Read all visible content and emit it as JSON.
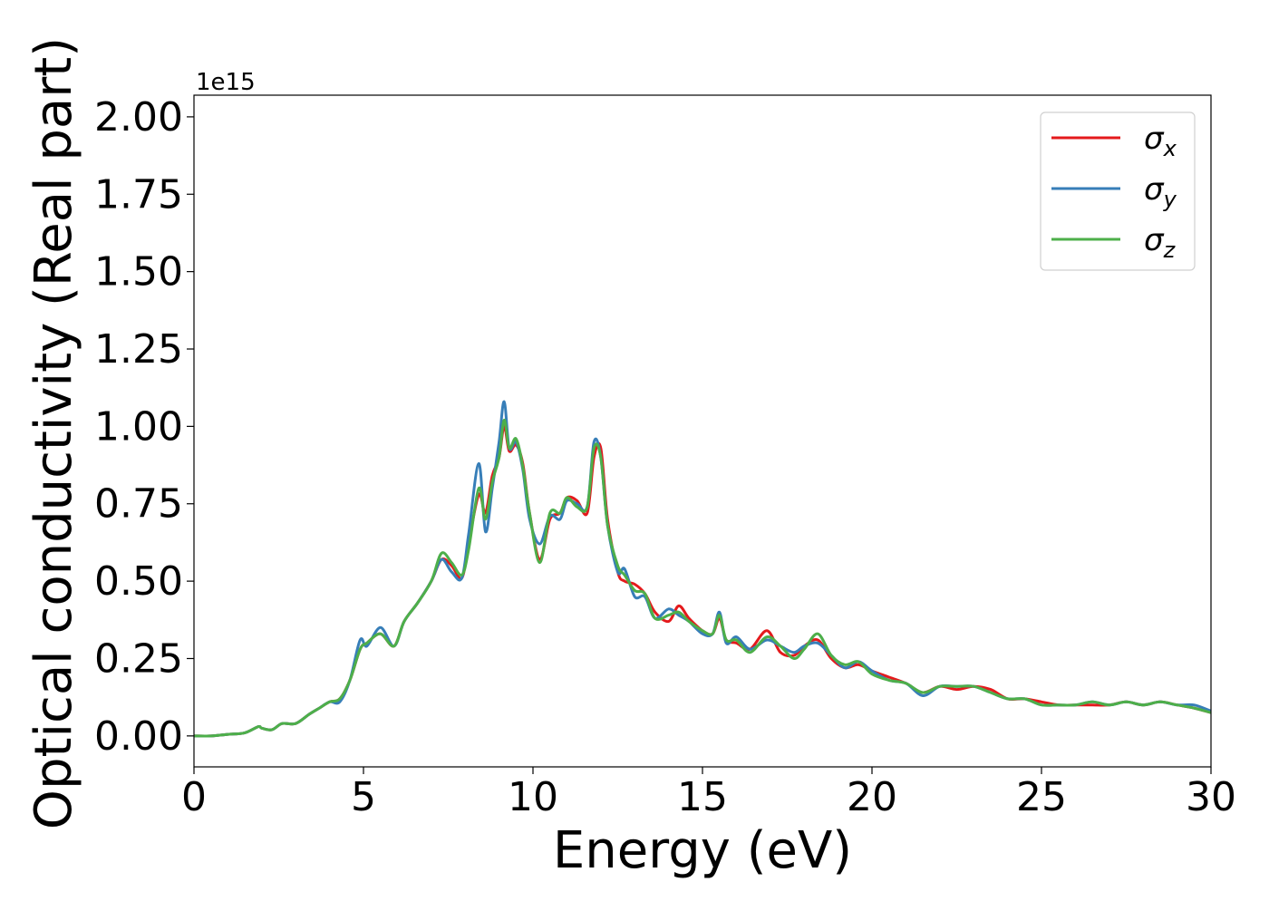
{
  "chart_data": {
    "type": "line",
    "title": "",
    "xlabel": "Energy (eV)",
    "ylabel": "Optical conductivity (Real part)",
    "offset_label": "1e15",
    "xlim": [
      0,
      30
    ],
    "ylim": [
      -0.1,
      2.07
    ],
    "x_ticks": [
      0,
      5,
      10,
      15,
      20,
      25,
      30
    ],
    "x_tick_labels": [
      "0",
      "5",
      "10",
      "15",
      "20",
      "25",
      "30"
    ],
    "y_ticks": [
      0.0,
      0.25,
      0.5,
      0.75,
      1.0,
      1.25,
      1.5,
      1.75,
      2.0
    ],
    "y_tick_labels": [
      "0.00",
      "0.25",
      "0.50",
      "0.75",
      "1.00",
      "1.25",
      "1.50",
      "1.75",
      "2.00"
    ],
    "grid": false,
    "legend_position": "top-right",
    "series": [
      {
        "name": "σx",
        "legend_main": "σ",
        "legend_sub": "x",
        "color": "#e41a1c",
        "x": [
          0,
          0.5,
          1.0,
          1.5,
          1.9,
          2.0,
          2.3,
          2.6,
          3.0,
          3.4,
          3.7,
          4.0,
          4.3,
          4.6,
          4.9,
          5.1,
          5.5,
          5.9,
          6.2,
          6.6,
          7.0,
          7.3,
          7.6,
          7.9,
          8.1,
          8.4,
          8.6,
          8.8,
          9.0,
          9.15,
          9.3,
          9.5,
          9.7,
          9.9,
          10.2,
          10.5,
          10.8,
          11.0,
          11.3,
          11.6,
          11.8,
          12.0,
          12.2,
          12.5,
          12.7,
          13.0,
          13.3,
          13.6,
          14.0,
          14.3,
          14.6,
          15.0,
          15.3,
          15.5,
          15.7,
          16.0,
          16.4,
          16.9,
          17.3,
          17.7,
          18.0,
          18.4,
          18.8,
          19.2,
          19.6,
          20.0,
          20.5,
          21.0,
          21.5,
          22.0,
          22.5,
          23.0,
          23.5,
          24.0,
          24.5,
          25.0,
          25.5,
          26.0,
          26.5,
          27.0,
          27.5,
          28.0,
          28.5,
          29.0,
          29.5,
          30.0
        ],
        "values": [
          0.0,
          0.0,
          0.005,
          0.01,
          0.03,
          0.025,
          0.02,
          0.04,
          0.04,
          0.07,
          0.09,
          0.11,
          0.12,
          0.18,
          0.28,
          0.3,
          0.33,
          0.29,
          0.37,
          0.43,
          0.5,
          0.57,
          0.55,
          0.51,
          0.62,
          0.78,
          0.72,
          0.84,
          0.9,
          1.0,
          0.92,
          0.94,
          0.88,
          0.72,
          0.57,
          0.7,
          0.72,
          0.77,
          0.76,
          0.72,
          0.9,
          0.93,
          0.7,
          0.53,
          0.5,
          0.49,
          0.46,
          0.4,
          0.37,
          0.42,
          0.38,
          0.34,
          0.33,
          0.38,
          0.31,
          0.3,
          0.28,
          0.34,
          0.27,
          0.26,
          0.29,
          0.31,
          0.25,
          0.22,
          0.23,
          0.21,
          0.19,
          0.17,
          0.14,
          0.16,
          0.15,
          0.16,
          0.15,
          0.12,
          0.12,
          0.11,
          0.1,
          0.1,
          0.1,
          0.1,
          0.11,
          0.1,
          0.11,
          0.1,
          0.09,
          0.075
        ]
      },
      {
        "name": "σy",
        "legend_main": "σ",
        "legend_sub": "y",
        "color": "#377eb8",
        "x": [
          0,
          0.5,
          1.0,
          1.5,
          1.9,
          2.0,
          2.3,
          2.6,
          3.0,
          3.4,
          3.7,
          4.0,
          4.3,
          4.6,
          4.9,
          5.1,
          5.5,
          5.9,
          6.2,
          6.6,
          7.0,
          7.3,
          7.6,
          7.9,
          8.1,
          8.4,
          8.6,
          8.8,
          9.0,
          9.15,
          9.3,
          9.5,
          9.7,
          9.9,
          10.2,
          10.5,
          10.8,
          11.0,
          11.3,
          11.6,
          11.8,
          12.0,
          12.2,
          12.5,
          12.7,
          13.0,
          13.3,
          13.6,
          14.0,
          14.3,
          14.6,
          15.0,
          15.3,
          15.5,
          15.7,
          16.0,
          16.4,
          16.9,
          17.3,
          17.7,
          18.0,
          18.4,
          18.8,
          19.2,
          19.6,
          20.0,
          20.5,
          21.0,
          21.5,
          22.0,
          22.5,
          23.0,
          23.5,
          24.0,
          24.5,
          25.0,
          25.5,
          26.0,
          26.5,
          27.0,
          27.5,
          28.0,
          28.5,
          29.0,
          29.5,
          30.0
        ],
        "values": [
          0.0,
          0.0,
          0.005,
          0.01,
          0.03,
          0.025,
          0.02,
          0.04,
          0.04,
          0.07,
          0.09,
          0.11,
          0.11,
          0.18,
          0.31,
          0.29,
          0.35,
          0.29,
          0.37,
          0.43,
          0.5,
          0.57,
          0.53,
          0.51,
          0.65,
          0.88,
          0.66,
          0.8,
          0.95,
          1.08,
          0.93,
          0.95,
          0.86,
          0.7,
          0.62,
          0.71,
          0.7,
          0.76,
          0.75,
          0.74,
          0.95,
          0.9,
          0.68,
          0.53,
          0.54,
          0.45,
          0.45,
          0.38,
          0.41,
          0.39,
          0.37,
          0.33,
          0.33,
          0.4,
          0.3,
          0.32,
          0.28,
          0.31,
          0.29,
          0.27,
          0.29,
          0.3,
          0.26,
          0.22,
          0.24,
          0.21,
          0.18,
          0.17,
          0.13,
          0.16,
          0.16,
          0.16,
          0.14,
          0.12,
          0.12,
          0.1,
          0.1,
          0.1,
          0.11,
          0.1,
          0.11,
          0.1,
          0.11,
          0.1,
          0.1,
          0.08
        ]
      },
      {
        "name": "σz",
        "legend_main": "σ",
        "legend_sub": "z",
        "color": "#4daf4a",
        "x": [
          0,
          0.5,
          1.0,
          1.5,
          1.9,
          2.0,
          2.3,
          2.6,
          3.0,
          3.4,
          3.7,
          4.0,
          4.3,
          4.6,
          4.9,
          5.1,
          5.5,
          5.9,
          6.2,
          6.6,
          7.0,
          7.3,
          7.6,
          7.9,
          8.1,
          8.4,
          8.6,
          8.8,
          9.0,
          9.15,
          9.3,
          9.5,
          9.7,
          9.9,
          10.2,
          10.5,
          10.8,
          11.0,
          11.3,
          11.6,
          11.8,
          12.0,
          12.2,
          12.5,
          12.7,
          13.0,
          13.3,
          13.6,
          14.0,
          14.3,
          14.6,
          15.0,
          15.3,
          15.5,
          15.7,
          16.0,
          16.4,
          16.9,
          17.3,
          17.7,
          18.0,
          18.4,
          18.8,
          19.2,
          19.6,
          20.0,
          20.5,
          21.0,
          21.5,
          22.0,
          22.5,
          23.0,
          23.5,
          24.0,
          24.5,
          25.0,
          25.5,
          26.0,
          26.5,
          27.0,
          27.5,
          28.0,
          28.5,
          29.0,
          29.5,
          30.0
        ],
        "values": [
          0.0,
          0.0,
          0.005,
          0.01,
          0.03,
          0.025,
          0.02,
          0.04,
          0.04,
          0.07,
          0.09,
          0.11,
          0.12,
          0.18,
          0.28,
          0.3,
          0.33,
          0.29,
          0.37,
          0.43,
          0.5,
          0.59,
          0.56,
          0.52,
          0.6,
          0.8,
          0.7,
          0.82,
          0.9,
          1.02,
          0.93,
          0.96,
          0.87,
          0.72,
          0.56,
          0.72,
          0.72,
          0.77,
          0.74,
          0.74,
          0.93,
          0.9,
          0.68,
          0.55,
          0.52,
          0.47,
          0.46,
          0.38,
          0.39,
          0.4,
          0.37,
          0.34,
          0.33,
          0.39,
          0.31,
          0.31,
          0.27,
          0.32,
          0.29,
          0.25,
          0.28,
          0.33,
          0.26,
          0.23,
          0.24,
          0.2,
          0.18,
          0.17,
          0.14,
          0.16,
          0.16,
          0.16,
          0.14,
          0.12,
          0.12,
          0.1,
          0.1,
          0.1,
          0.11,
          0.1,
          0.11,
          0.1,
          0.11,
          0.1,
          0.09,
          0.075
        ]
      }
    ]
  }
}
